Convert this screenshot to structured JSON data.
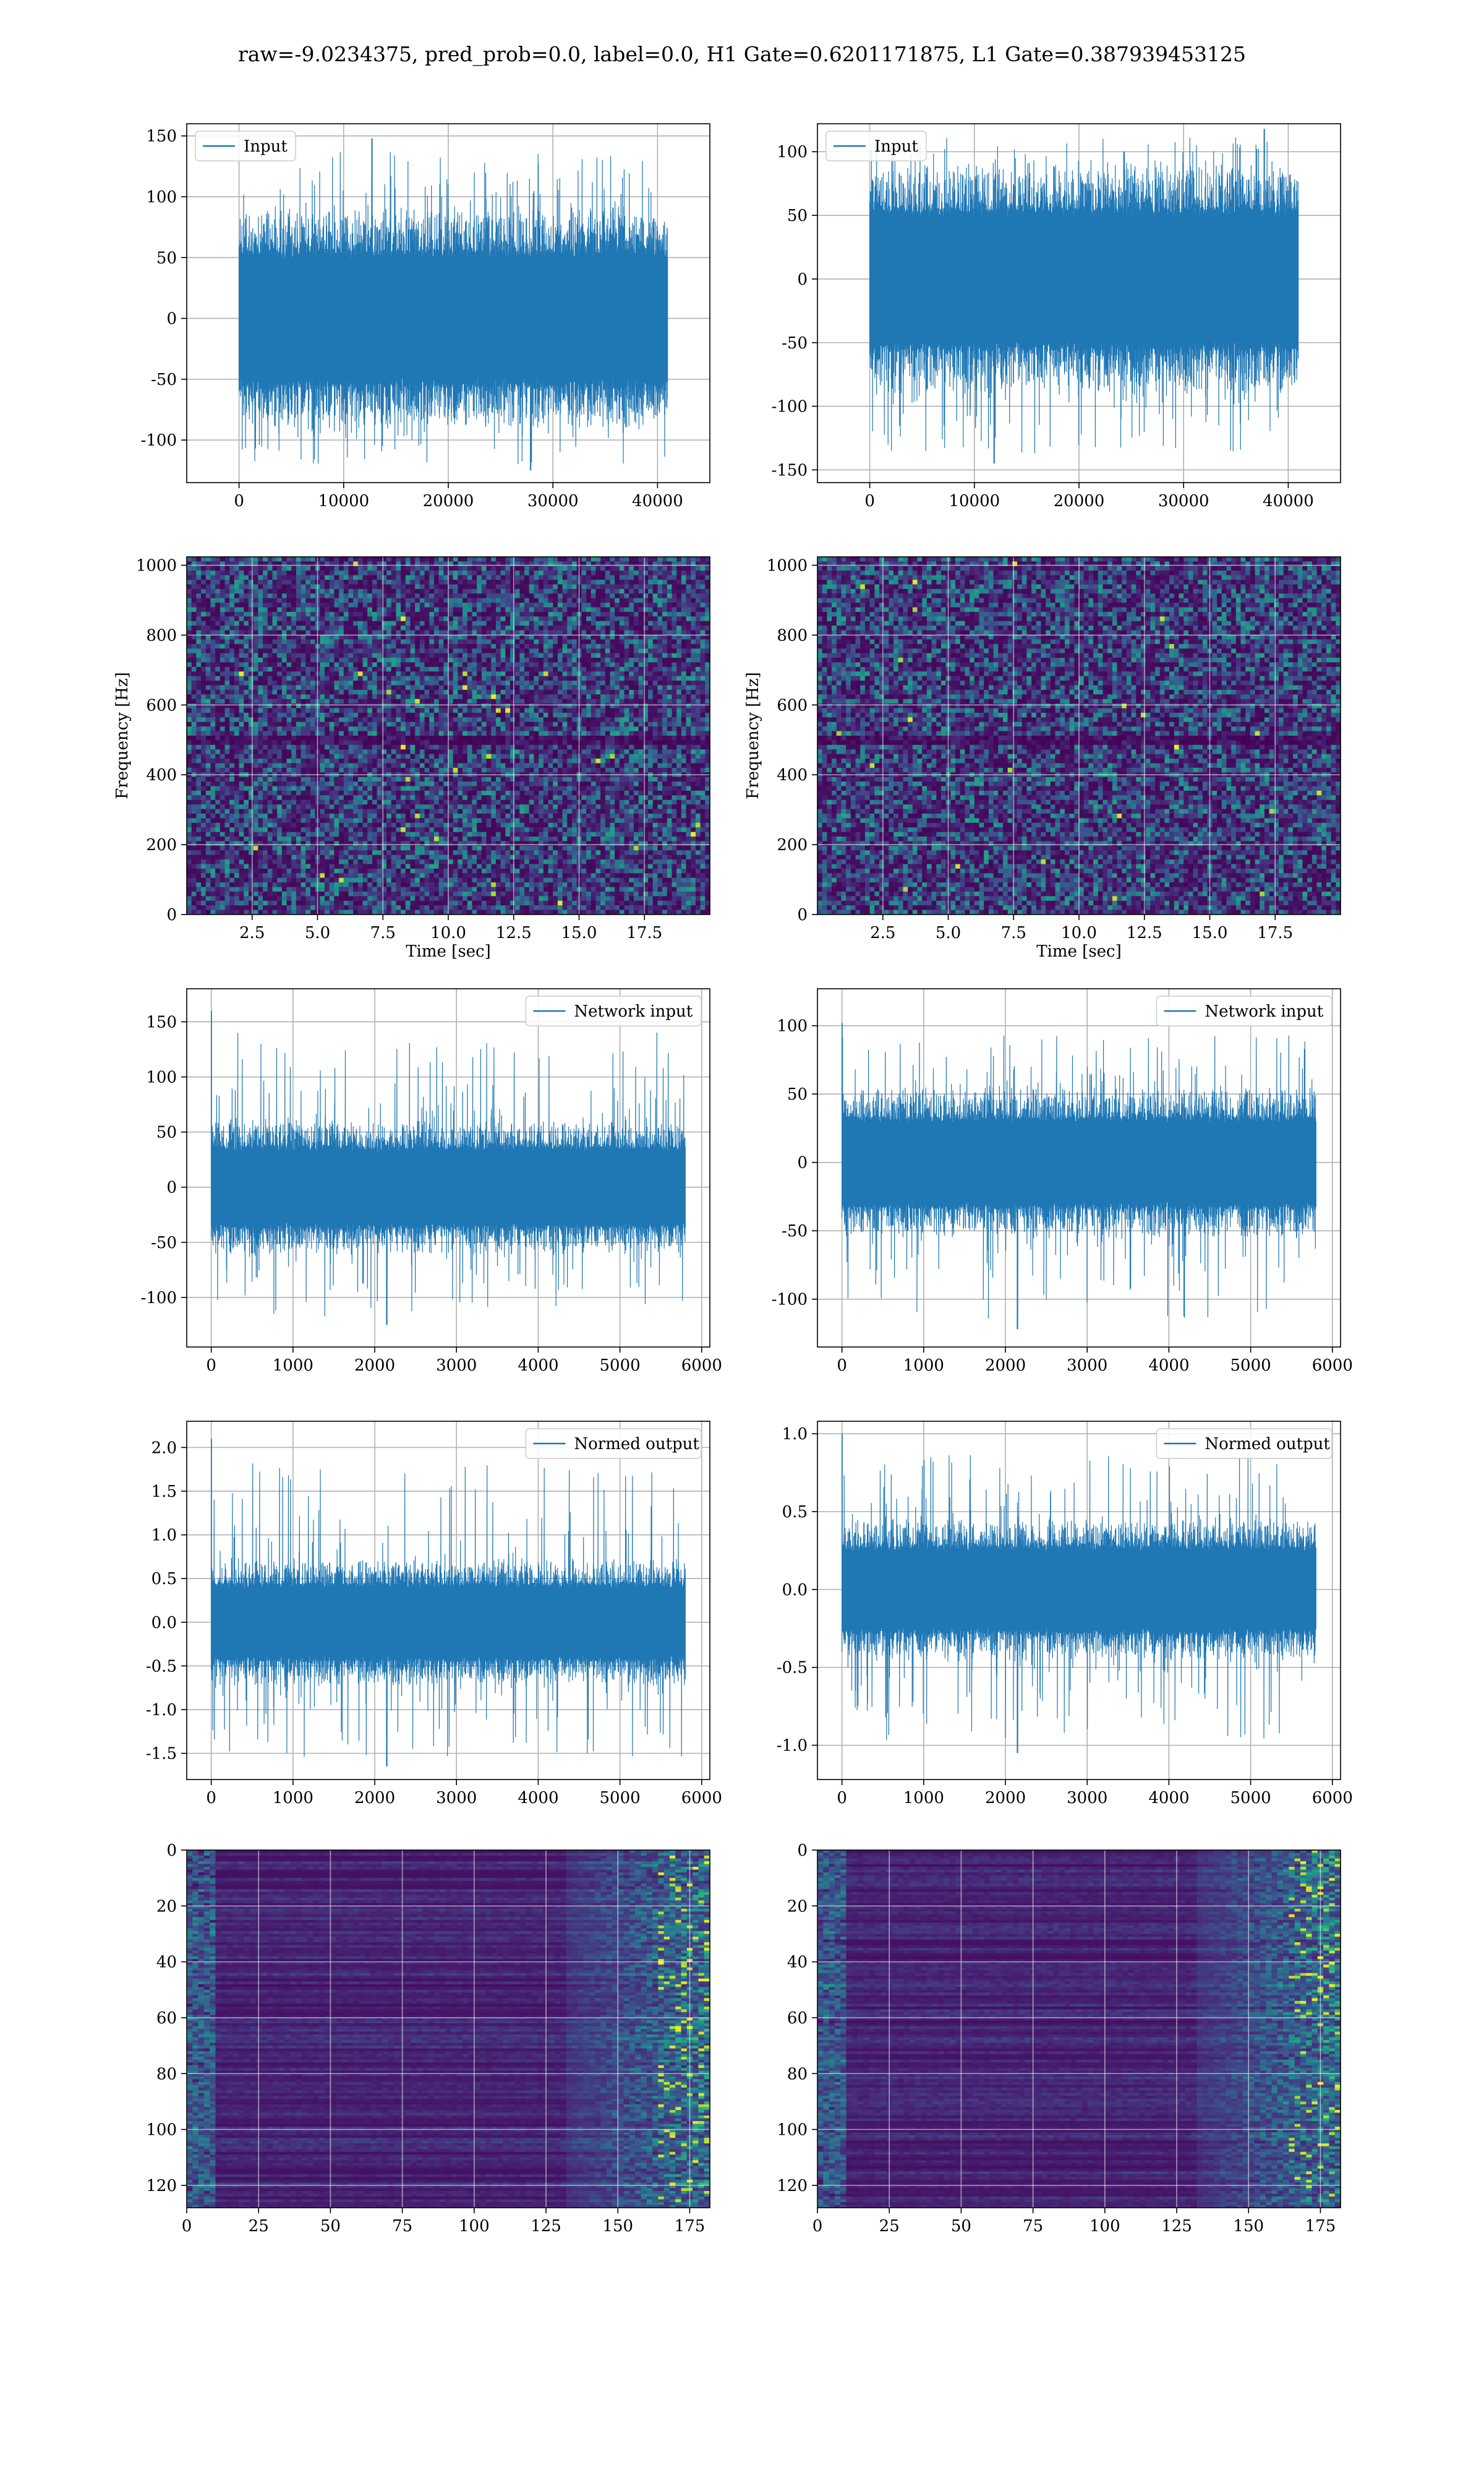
{
  "title": "raw=-9.0234375, pred_prob=0.0, label=0.0, H1 Gate=0.6201171875, L1 Gate=0.387939453125",
  "colors": {
    "line": "#1f77b4",
    "viridis": [
      "#440154",
      "#472d7b",
      "#3b528b",
      "#2c728e",
      "#21918c",
      "#28ae80",
      "#5ec962",
      "#addc30",
      "#fde725"
    ]
  },
  "chart_data": [
    {
      "id": "input-h1",
      "type": "line",
      "legend": "Input",
      "legend_loc": "upper-left",
      "xlim": [
        -5000,
        45000
      ],
      "ylim": [
        -135,
        160
      ],
      "xticks": [
        0,
        10000,
        20000,
        30000,
        40000
      ],
      "yticks": [
        -100,
        -50,
        0,
        50,
        100,
        150
      ],
      "n": 40960,
      "envelope": 75,
      "peak": 148,
      "trough": -125,
      "grid": true
    },
    {
      "id": "input-l1",
      "type": "line",
      "legend": "Input",
      "legend_loc": "upper-left",
      "xlim": [
        -5000,
        45000
      ],
      "ylim": [
        -160,
        122
      ],
      "xticks": [
        0,
        10000,
        20000,
        30000,
        40000
      ],
      "yticks": [
        -150,
        -100,
        -50,
        0,
        50,
        100
      ],
      "n": 40960,
      "envelope": 75,
      "peak": 118,
      "trough": -145,
      "grid": true
    },
    {
      "id": "spec-h1",
      "type": "heatmap",
      "cmap": "viridis",
      "xlim": [
        0,
        20
      ],
      "ylim": [
        0,
        1024
      ],
      "xticks": [
        2.5,
        5.0,
        7.5,
        10.0,
        12.5,
        15.0,
        17.5
      ],
      "yticks": [
        0,
        200,
        400,
        600,
        800,
        1000
      ],
      "xlabel": "Time [sec]",
      "ylabel": "Frequency [Hz]",
      "grid": true
    },
    {
      "id": "spec-l1",
      "type": "heatmap",
      "cmap": "viridis",
      "xlim": [
        0,
        20
      ],
      "ylim": [
        0,
        1024
      ],
      "xticks": [
        2.5,
        5.0,
        7.5,
        10.0,
        12.5,
        15.0,
        17.5
      ],
      "yticks": [
        0,
        200,
        400,
        600,
        800,
        1000
      ],
      "xlabel": "Time [sec]",
      "ylabel": "Frequency [Hz]",
      "grid": true
    },
    {
      "id": "net-h1",
      "type": "line",
      "legend": "Network input",
      "legend_loc": "upper-right",
      "xlim": [
        -300,
        6100
      ],
      "ylim": [
        -145,
        180
      ],
      "xticks": [
        0,
        1000,
        2000,
        3000,
        4000,
        5000,
        6000
      ],
      "yticks": [
        -100,
        -50,
        0,
        50,
        100,
        150
      ],
      "n": 5800,
      "envelope": 50,
      "peak": 160,
      "trough": -125,
      "grid": true
    },
    {
      "id": "net-l1",
      "type": "line",
      "legend": "Network input",
      "legend_loc": "upper-right",
      "xlim": [
        -300,
        6100
      ],
      "ylim": [
        -135,
        127
      ],
      "xticks": [
        0,
        1000,
        2000,
        3000,
        4000,
        5000,
        6000
      ],
      "yticks": [
        -100,
        -50,
        0,
        50,
        100
      ],
      "n": 5800,
      "envelope": 45,
      "peak": 102,
      "trough": -122,
      "grid": true
    },
    {
      "id": "norm-h1",
      "type": "line",
      "legend": "Normed output",
      "legend_loc": "upper-right",
      "xlim": [
        -300,
        6100
      ],
      "ylim": [
        -1.8,
        2.3
      ],
      "xticks": [
        0,
        1000,
        2000,
        3000,
        4000,
        5000,
        6000
      ],
      "yticks": [
        -1.5,
        -1.0,
        -0.5,
        0.0,
        0.5,
        1.0,
        1.5,
        2.0
      ],
      "n": 5800,
      "envelope": 0.6,
      "peak": 2.1,
      "trough": -1.65,
      "grid": true
    },
    {
      "id": "norm-l1",
      "type": "line",
      "legend": "Normed output",
      "legend_loc": "upper-right",
      "xlim": [
        -300,
        6100
      ],
      "ylim": [
        -1.22,
        1.08
      ],
      "xticks": [
        0,
        1000,
        2000,
        3000,
        4000,
        5000,
        6000
      ],
      "yticks": [
        -1.0,
        -0.5,
        0.0,
        0.5,
        1.0
      ],
      "n": 5800,
      "envelope": 0.38,
      "peak": 1.0,
      "trough": -1.05,
      "grid": true
    },
    {
      "id": "feat-h1",
      "type": "heatmap",
      "cmap": "viridis",
      "xlim": [
        0,
        182
      ],
      "ylim": [
        128,
        0
      ],
      "xticks": [
        0,
        25,
        50,
        75,
        100,
        125,
        150,
        175
      ],
      "yticks": [
        0,
        20,
        40,
        60,
        80,
        100,
        120
      ],
      "grid": true
    },
    {
      "id": "feat-l1",
      "type": "heatmap",
      "cmap": "viridis",
      "xlim": [
        0,
        182
      ],
      "ylim": [
        128,
        0
      ],
      "xticks": [
        0,
        25,
        50,
        75,
        100,
        125,
        150,
        175
      ],
      "yticks": [
        0,
        20,
        40,
        60,
        80,
        100,
        120
      ],
      "grid": true
    }
  ]
}
